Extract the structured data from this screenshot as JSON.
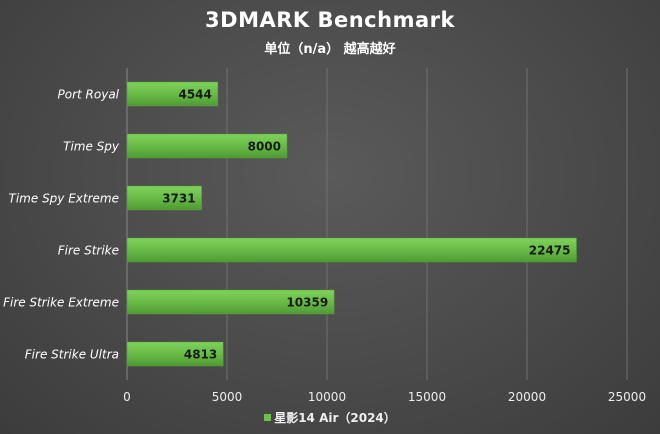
{
  "chart_data": {
    "type": "bar",
    "orientation": "horizontal",
    "title": "3DMARK Benchmark",
    "subtitle": "单位（n/a） 越高越好",
    "categories": [
      "Port Royal",
      "Time Spy",
      "Time Spy Extreme",
      "Fire Strike",
      "Fire Strike Extreme",
      "Fire Strike Ultra"
    ],
    "series": [
      {
        "name": "星影14 Air（2024）",
        "values": [
          4544,
          8000,
          3731,
          22475,
          10359,
          4813
        ]
      }
    ],
    "xlim": [
      0,
      25000
    ],
    "xticks": [
      "0",
      "5000",
      "10000",
      "15000",
      "20000",
      "25000"
    ],
    "grid": true,
    "legend_position": "bottom",
    "colors": {
      "bar": "#6cc04a",
      "bar_dark": "#4f9a34",
      "grid": "#707070",
      "text": "#ffffff"
    }
  }
}
